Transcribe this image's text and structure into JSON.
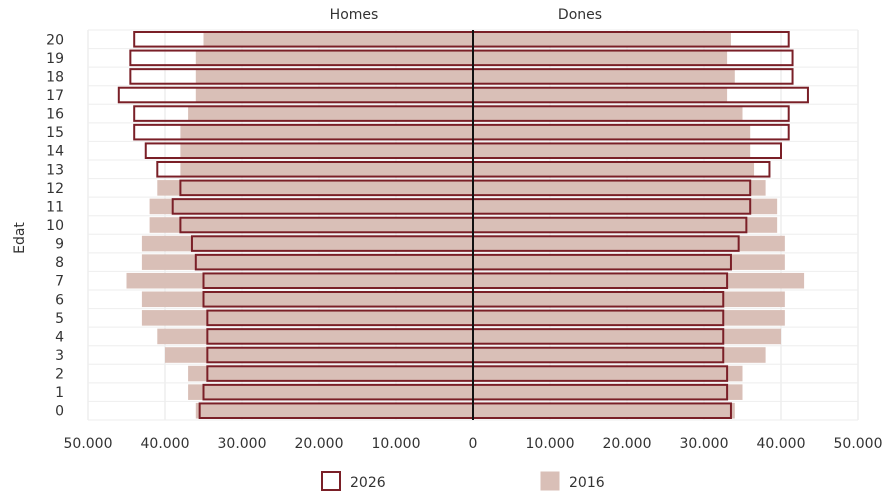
{
  "chart_data": {
    "type": "bar",
    "orientation": "horizontal",
    "subtype": "population-pyramid",
    "ylabel": "Edat",
    "side_labels": {
      "left": "Homes",
      "right": "Dones"
    },
    "categories": [
      "0",
      "1",
      "2",
      "3",
      "4",
      "5",
      "6",
      "7",
      "8",
      "9",
      "10",
      "11",
      "12",
      "13",
      "14",
      "15",
      "16",
      "17",
      "18",
      "19",
      "20"
    ],
    "x_ticks": [
      "50.000",
      "40.000",
      "30.000",
      "20.000",
      "10.000",
      "0",
      "10.000",
      "20.000",
      "30.000",
      "40.000",
      "50.000"
    ],
    "xlim": [
      -50000,
      50000
    ],
    "grid": true,
    "legend_position": "bottom",
    "series": [
      {
        "name": "2016",
        "style": "filled",
        "color": "#d9bfb7",
        "homes": [
          36000,
          37000,
          37000,
          40000,
          41000,
          43000,
          43000,
          45000,
          43000,
          43000,
          42000,
          42000,
          41000,
          38000,
          38000,
          38000,
          37000,
          36000,
          36000,
          36000,
          35000
        ],
        "dones": [
          34000,
          35000,
          35000,
          38000,
          40000,
          40500,
          40500,
          43000,
          40500,
          40500,
          39500,
          39500,
          38000,
          36500,
          36000,
          36000,
          35000,
          33000,
          34000,
          33000,
          33500
        ]
      },
      {
        "name": "2026",
        "style": "outline",
        "color": "#7a1f27",
        "homes": [
          35500,
          35000,
          34500,
          34500,
          34500,
          34500,
          35000,
          35000,
          36000,
          36500,
          38000,
          39000,
          38000,
          41000,
          42500,
          44000,
          44000,
          46000,
          44500,
          44500,
          44000
        ],
        "dones": [
          33500,
          33000,
          33000,
          32500,
          32500,
          32500,
          32500,
          33000,
          33500,
          34500,
          35500,
          36000,
          36000,
          38500,
          40000,
          41000,
          41000,
          43500,
          41500,
          41500,
          41000
        ]
      }
    ]
  }
}
